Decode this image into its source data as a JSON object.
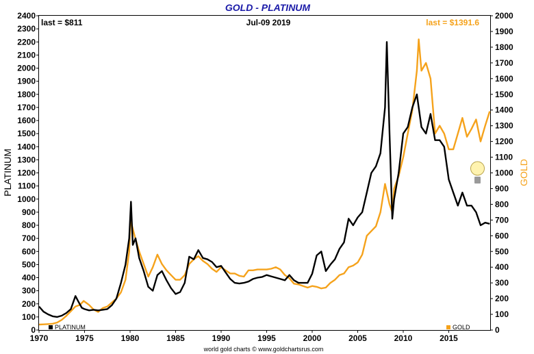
{
  "chart_data": {
    "type": "line",
    "title": "GOLD - PLATINUM",
    "date_label": "Jul-09  2019",
    "ylabel_left": "PLATINUM",
    "ylabel_right": "GOLD",
    "last_left": "last = $811",
    "last_right": "last = $1391.6",
    "credit": "world gold charts © www.goldchartsrus.com",
    "xlim": [
      1970,
      2019.55
    ],
    "ylim_left": [
      0,
      2400
    ],
    "ylim_right": [
      0,
      2000
    ],
    "xticks": [
      1970,
      1975,
      1980,
      1985,
      1990,
      1995,
      2000,
      2005,
      2010,
      2015
    ],
    "yticks_left": [
      0,
      100,
      200,
      300,
      400,
      500,
      600,
      700,
      800,
      900,
      1000,
      1100,
      1200,
      1300,
      1400,
      1500,
      1600,
      1700,
      1800,
      1900,
      2000,
      2100,
      2200,
      2300,
      2400
    ],
    "yticks_right": [
      0,
      100,
      200,
      300,
      400,
      500,
      600,
      700,
      800,
      900,
      1000,
      1100,
      1200,
      1300,
      1400,
      1500,
      1600,
      1700,
      1800,
      1900,
      2000
    ],
    "grid": false,
    "series": [
      {
        "name": "PLATINUM",
        "axis": "left",
        "color": "#000000",
        "points": [
          [
            1970,
            180
          ],
          [
            1970.5,
            140
          ],
          [
            1971,
            120
          ],
          [
            1971.5,
            105
          ],
          [
            1972,
            100
          ],
          [
            1972.5,
            110
          ],
          [
            1973,
            130
          ],
          [
            1973.5,
            160
          ],
          [
            1974,
            260
          ],
          [
            1974.3,
            220
          ],
          [
            1974.7,
            170
          ],
          [
            1975,
            160
          ],
          [
            1975.5,
            150
          ],
          [
            1976,
            155
          ],
          [
            1976.5,
            150
          ],
          [
            1977,
            155
          ],
          [
            1977.5,
            160
          ],
          [
            1978,
            190
          ],
          [
            1978.5,
            240
          ],
          [
            1979,
            360
          ],
          [
            1979.5,
            500
          ],
          [
            1979.9,
            700
          ],
          [
            1980.1,
            980
          ],
          [
            1980.3,
            650
          ],
          [
            1980.6,
            700
          ],
          [
            1981,
            550
          ],
          [
            1981.5,
            450
          ],
          [
            1982,
            330
          ],
          [
            1982.5,
            300
          ],
          [
            1983,
            420
          ],
          [
            1983.5,
            450
          ],
          [
            1984,
            380
          ],
          [
            1984.5,
            320
          ],
          [
            1985,
            275
          ],
          [
            1985.5,
            290
          ],
          [
            1986,
            360
          ],
          [
            1986.5,
            560
          ],
          [
            1987,
            540
          ],
          [
            1987.5,
            610
          ],
          [
            1988,
            550
          ],
          [
            1988.5,
            540
          ],
          [
            1989,
            520
          ],
          [
            1989.5,
            480
          ],
          [
            1990,
            490
          ],
          [
            1990.5,
            440
          ],
          [
            1991,
            390
          ],
          [
            1991.5,
            360
          ],
          [
            1992,
            355
          ],
          [
            1992.5,
            360
          ],
          [
            1993,
            370
          ],
          [
            1993.5,
            390
          ],
          [
            1994,
            400
          ],
          [
            1994.5,
            405
          ],
          [
            1995,
            420
          ],
          [
            1995.5,
            410
          ],
          [
            1996,
            400
          ],
          [
            1996.5,
            390
          ],
          [
            1997,
            380
          ],
          [
            1997.5,
            420
          ],
          [
            1998,
            380
          ],
          [
            1998.5,
            360
          ],
          [
            1999,
            360
          ],
          [
            1999.5,
            360
          ],
          [
            2000,
            430
          ],
          [
            2000.5,
            570
          ],
          [
            2001,
            600
          ],
          [
            2001.5,
            450
          ],
          [
            2002,
            500
          ],
          [
            2002.5,
            540
          ],
          [
            2003,
            620
          ],
          [
            2003.5,
            670
          ],
          [
            2004,
            850
          ],
          [
            2004.5,
            800
          ],
          [
            2005,
            860
          ],
          [
            2005.5,
            900
          ],
          [
            2006,
            1050
          ],
          [
            2006.5,
            1200
          ],
          [
            2007,
            1250
          ],
          [
            2007.5,
            1350
          ],
          [
            2008,
            1700
          ],
          [
            2008.2,
            2200
          ],
          [
            2008.5,
            1500
          ],
          [
            2008.8,
            850
          ],
          [
            2009,
            1000
          ],
          [
            2009.5,
            1200
          ],
          [
            2010,
            1500
          ],
          [
            2010.5,
            1550
          ],
          [
            2011,
            1700
          ],
          [
            2011.5,
            1800
          ],
          [
            2012,
            1550
          ],
          [
            2012.5,
            1500
          ],
          [
            2013,
            1650
          ],
          [
            2013.5,
            1450
          ],
          [
            2014,
            1450
          ],
          [
            2014.5,
            1400
          ],
          [
            2015,
            1150
          ],
          [
            2015.5,
            1050
          ],
          [
            2016,
            950
          ],
          [
            2016.5,
            1050
          ],
          [
            2017,
            950
          ],
          [
            2017.5,
            950
          ],
          [
            2018,
            900
          ],
          [
            2018.5,
            800
          ],
          [
            2019,
            820
          ],
          [
            2019.5,
            811
          ]
        ]
      },
      {
        "name": "GOLD",
        "axis": "right",
        "color": "#f5a21b",
        "points": [
          [
            1970,
            35
          ],
          [
            1970.5,
            36
          ],
          [
            1971,
            38
          ],
          [
            1971.5,
            40
          ],
          [
            1972,
            48
          ],
          [
            1972.5,
            65
          ],
          [
            1973,
            90
          ],
          [
            1973.5,
            120
          ],
          [
            1974,
            150
          ],
          [
            1974.5,
            160
          ],
          [
            1974.9,
            185
          ],
          [
            1975.5,
            160
          ],
          [
            1976,
            130
          ],
          [
            1976.5,
            115
          ],
          [
            1977,
            140
          ],
          [
            1977.5,
            150
          ],
          [
            1978,
            175
          ],
          [
            1978.5,
            200
          ],
          [
            1979,
            240
          ],
          [
            1979.5,
            320
          ],
          [
            1979.9,
            500
          ],
          [
            1980.05,
            700
          ],
          [
            1980.5,
            600
          ],
          [
            1981,
            500
          ],
          [
            1981.5,
            420
          ],
          [
            1982,
            340
          ],
          [
            1982.5,
            400
          ],
          [
            1983,
            480
          ],
          [
            1983.5,
            420
          ],
          [
            1984,
            380
          ],
          [
            1984.5,
            350
          ],
          [
            1985,
            320
          ],
          [
            1985.5,
            320
          ],
          [
            1986,
            350
          ],
          [
            1986.5,
            420
          ],
          [
            1987,
            450
          ],
          [
            1987.5,
            470
          ],
          [
            1988,
            440
          ],
          [
            1988.5,
            420
          ],
          [
            1989,
            390
          ],
          [
            1989.5,
            370
          ],
          [
            1990,
            400
          ],
          [
            1990.5,
            380
          ],
          [
            1991,
            360
          ],
          [
            1991.5,
            360
          ],
          [
            1992,
            345
          ],
          [
            1992.5,
            340
          ],
          [
            1993,
            380
          ],
          [
            1993.5,
            380
          ],
          [
            1994,
            385
          ],
          [
            1994.5,
            385
          ],
          [
            1995,
            385
          ],
          [
            1995.5,
            390
          ],
          [
            1996,
            400
          ],
          [
            1996.5,
            385
          ],
          [
            1997,
            350
          ],
          [
            1997.5,
            330
          ],
          [
            1998,
            295
          ],
          [
            1998.5,
            290
          ],
          [
            1999,
            280
          ],
          [
            1999.5,
            270
          ],
          [
            2000,
            280
          ],
          [
            2000.5,
            275
          ],
          [
            2001,
            265
          ],
          [
            2001.5,
            270
          ],
          [
            2002,
            300
          ],
          [
            2002.5,
            320
          ],
          [
            2003,
            350
          ],
          [
            2003.5,
            360
          ],
          [
            2004,
            400
          ],
          [
            2004.5,
            410
          ],
          [
            2005,
            430
          ],
          [
            2005.5,
            480
          ],
          [
            2006,
            600
          ],
          [
            2006.5,
            630
          ],
          [
            2007,
            660
          ],
          [
            2007.5,
            750
          ],
          [
            2008,
            930
          ],
          [
            2008.5,
            800
          ],
          [
            2008.8,
            750
          ],
          [
            2009,
            900
          ],
          [
            2009.5,
            980
          ],
          [
            2010,
            1100
          ],
          [
            2010.5,
            1250
          ],
          [
            2011,
            1400
          ],
          [
            2011.5,
            1650
          ],
          [
            2011.7,
            1850
          ],
          [
            2012,
            1650
          ],
          [
            2012.5,
            1700
          ],
          [
            2013,
            1600
          ],
          [
            2013.5,
            1250
          ],
          [
            2014,
            1300
          ],
          [
            2014.5,
            1250
          ],
          [
            2015,
            1150
          ],
          [
            2015.5,
            1150
          ],
          [
            2016,
            1250
          ],
          [
            2016.5,
            1350
          ],
          [
            2017,
            1230
          ],
          [
            2017.5,
            1280
          ],
          [
            2018,
            1340
          ],
          [
            2018.5,
            1200
          ],
          [
            2019,
            1300
          ],
          [
            2019.5,
            1391.6
          ]
        ]
      }
    ]
  }
}
